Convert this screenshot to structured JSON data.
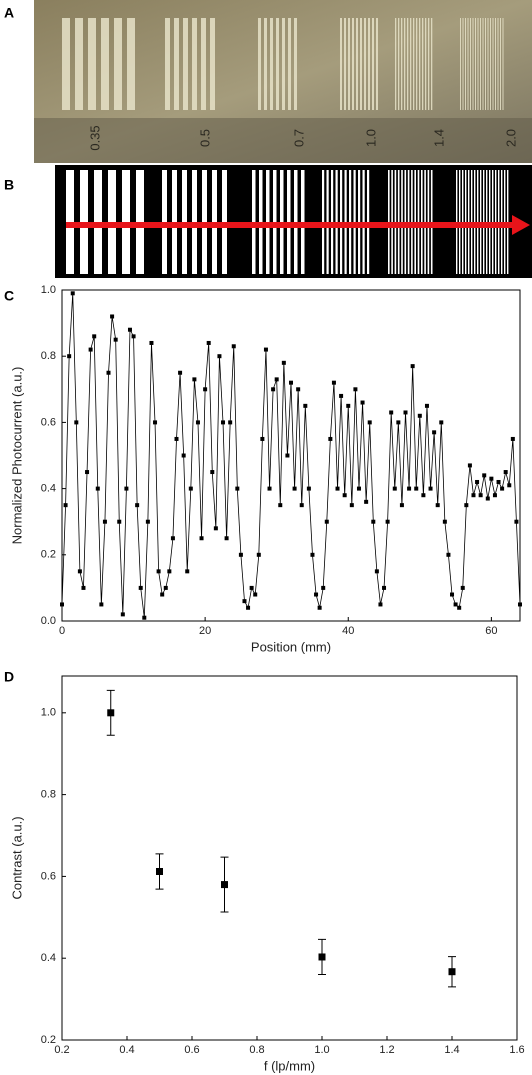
{
  "panel_labels": [
    "A",
    "B",
    "C",
    "D"
  ],
  "photo": {
    "scale_labels": [
      "0.35",
      "0.5",
      "0.7",
      "1.0",
      "1.4",
      "2.0"
    ]
  },
  "chart_data": [
    {
      "type": "line",
      "x_label": "Position (mm)",
      "y_label": "Normalized Photocurrent (a.u.)",
      "xlim": [
        0,
        64
      ],
      "xticks": [
        0,
        20,
        40,
        60
      ],
      "ylim": [
        0,
        1
      ],
      "yticks": [
        {
          "value": 0,
          "label": "0.0"
        },
        0.2,
        0.4,
        0.6,
        0.8,
        {
          "value": 1,
          "label": "1.0"
        }
      ],
      "color": "#000000",
      "x": [
        0,
        0.5,
        1,
        1.5,
        2,
        2.5,
        3,
        3.5,
        4,
        4.5,
        5,
        5.5,
        6,
        6.5,
        7,
        7.5,
        8,
        8.5,
        9,
        9.5,
        10,
        10.5,
        11,
        11.5,
        12,
        12.5,
        13,
        13.5,
        14,
        14.5,
        15,
        15.5,
        16,
        16.5,
        17,
        17.5,
        18,
        18.5,
        19,
        19.5,
        20,
        20.5,
        21,
        21.5,
        22,
        22.5,
        23,
        23.5,
        24,
        24.5,
        25,
        25.5,
        26,
        26.5,
        27,
        27.5,
        28,
        28.5,
        29,
        29.5,
        30,
        30.5,
        31,
        31.5,
        32,
        32.5,
        33,
        33.5,
        34,
        34.5,
        35,
        35.5,
        36,
        36.5,
        37,
        37.5,
        38,
        38.5,
        39,
        39.5,
        40,
        40.5,
        41,
        41.5,
        42,
        42.5,
        43,
        43.5,
        44,
        44.5,
        45,
        45.5,
        46,
        46.5,
        47,
        47.5,
        48,
        48.5,
        49,
        49.5,
        50,
        50.5,
        51,
        51.5,
        52,
        52.5,
        53,
        53.5,
        54,
        54.5,
        55,
        55.5,
        56,
        56.5,
        57,
        57.5,
        58,
        58.5,
        59,
        59.5,
        60,
        60.5,
        61,
        61.5,
        62,
        62.5,
        63,
        63.5,
        64
      ],
      "values": [
        0.05,
        0.35,
        0.8,
        0.99,
        0.6,
        0.15,
        0.1,
        0.45,
        0.82,
        0.86,
        0.4,
        0.05,
        0.3,
        0.75,
        0.92,
        0.85,
        0.3,
        0.02,
        0.4,
        0.88,
        0.86,
        0.35,
        0.1,
        0.01,
        0.3,
        0.84,
        0.6,
        0.15,
        0.08,
        0.1,
        0.15,
        0.25,
        0.55,
        0.75,
        0.5,
        0.15,
        0.4,
        0.73,
        0.6,
        0.25,
        0.7,
        0.84,
        0.45,
        0.28,
        0.8,
        0.6,
        0.25,
        0.6,
        0.83,
        0.4,
        0.2,
        0.06,
        0.04,
        0.1,
        0.08,
        0.2,
        0.55,
        0.82,
        0.4,
        0.7,
        0.73,
        0.35,
        0.78,
        0.5,
        0.72,
        0.4,
        0.7,
        0.35,
        0.65,
        0.4,
        0.2,
        0.08,
        0.04,
        0.1,
        0.3,
        0.55,
        0.72,
        0.4,
        0.68,
        0.38,
        0.65,
        0.35,
        0.7,
        0.4,
        0.66,
        0.36,
        0.6,
        0.3,
        0.15,
        0.05,
        0.1,
        0.3,
        0.63,
        0.4,
        0.6,
        0.35,
        0.63,
        0.4,
        0.77,
        0.4,
        0.62,
        0.38,
        0.65,
        0.4,
        0.57,
        0.35,
        0.6,
        0.3,
        0.2,
        0.08,
        0.05,
        0.04,
        0.1,
        0.35,
        0.47,
        0.38,
        0.42,
        0.38,
        0.44,
        0.37,
        0.43,
        0.38,
        0.42,
        0.4,
        0.45,
        0.41,
        0.55,
        0.3,
        0.05
      ]
    },
    {
      "type": "scatter",
      "x_label": "f (lp/mm)",
      "y_label": "Contrast (a.u.)",
      "xlim": [
        0.2,
        1.6
      ],
      "xticks": [
        0.2,
        0.4,
        0.6,
        0.8,
        {
          "value": 1,
          "label": "1.0"
        },
        1.2,
        1.4,
        1.6
      ],
      "ylim": [
        0.2,
        1.09
      ],
      "yticks": [
        0.2,
        0.4,
        0.6,
        0.8,
        {
          "value": 1,
          "label": "1.0"
        }
      ],
      "color": "#000000",
      "x": [
        0.35,
        0.5,
        0.7,
        1.0,
        1.4
      ],
      "values": [
        1.0,
        0.612,
        0.58,
        0.403,
        0.367
      ],
      "errors": [
        0.055,
        0.043,
        0.067,
        0.043,
        0.037
      ]
    }
  ]
}
